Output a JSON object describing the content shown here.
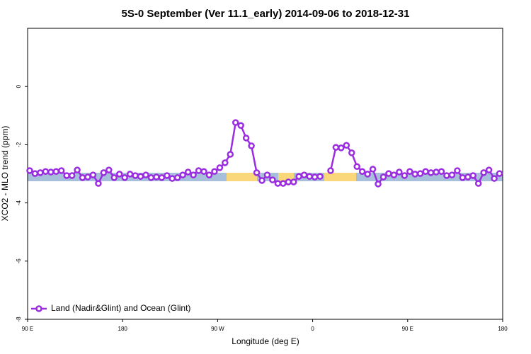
{
  "chart_data": {
    "type": "line",
    "title": "5S-0 September (Ver 11.1_early)   2014-09-06 to 2018-12-31",
    "xlabel": "Longitude (deg E)",
    "ylabel": "XCO2 - MLO trend (ppm)",
    "x": [
      92,
      97,
      102,
      107,
      112,
      117,
      122,
      127,
      132,
      137,
      142,
      147,
      152,
      157,
      162,
      167,
      172,
      177,
      182,
      187,
      192,
      197,
      202,
      207,
      212,
      217,
      222,
      227,
      232,
      237,
      242,
      247,
      252,
      257,
      262,
      267,
      272,
      277,
      282,
      287,
      292,
      297,
      302,
      307,
      312,
      317,
      322,
      327,
      332,
      337,
      342,
      347,
      352,
      357,
      362,
      367,
      372,
      377,
      382,
      387,
      392,
      397,
      402,
      407,
      412,
      417,
      422,
      427,
      432,
      437,
      442,
      447,
      452,
      457,
      462,
      467,
      472,
      477,
      482,
      487,
      492,
      497,
      502,
      507,
      512,
      517,
      522,
      527,
      532,
      537
    ],
    "series": [
      {
        "name": "Land (Nadir&Glint) and Ocean (Glint)",
        "color": "#9b2de0",
        "values": [
          -2.89,
          -2.99,
          -2.96,
          -2.92,
          -2.94,
          -2.92,
          -2.89,
          -3.06,
          -3.06,
          -2.87,
          -3.13,
          -3.11,
          -3.04,
          -3.33,
          -2.96,
          -2.87,
          -3.13,
          -3.01,
          -3.13,
          -3.01,
          -3.06,
          -3.09,
          -3.04,
          -3.13,
          -3.11,
          -3.13,
          -3.06,
          -3.16,
          -3.13,
          -3.04,
          -2.94,
          -3.04,
          -2.89,
          -2.92,
          -3.04,
          -2.92,
          -2.79,
          -2.62,
          -2.33,
          -1.24,
          -1.34,
          -1.77,
          -2.04,
          -2.96,
          -3.23,
          -3.04,
          -3.21,
          -3.33,
          -3.33,
          -3.28,
          -3.28,
          -3.09,
          -3.04,
          -3.09,
          -3.11,
          -3.09,
          null,
          -2.89,
          -2.09,
          -2.11,
          -2.02,
          -2.28,
          -2.75,
          -2.92,
          -3.01,
          -2.84,
          -3.35,
          -3.11,
          -2.99,
          -3.04,
          -2.94,
          -3.06,
          -2.92,
          -3.01,
          -2.99,
          -2.92,
          -2.96,
          -2.94,
          -2.92,
          -3.06,
          -3.04,
          -2.89,
          -3.13,
          -3.11,
          -3.06,
          -3.33,
          -2.96,
          -2.87,
          -3.16,
          -2.99
        ]
      }
    ],
    "xlim": [
      90,
      540
    ],
    "xticks": [
      {
        "value": 90,
        "label": "90 E"
      },
      180,
      {
        "value": 270,
        "label": "90 W"
      },
      {
        "value": 360,
        "label": "0"
      },
      {
        "value": 450,
        "label": "90 E"
      },
      {
        "value": 540,
        "label": "180"
      }
    ],
    "ylim": [
      -8,
      2
    ],
    "yticks": [
      -8,
      -6,
      -4,
      -2,
      0
    ],
    "legend": "lower left"
  }
}
